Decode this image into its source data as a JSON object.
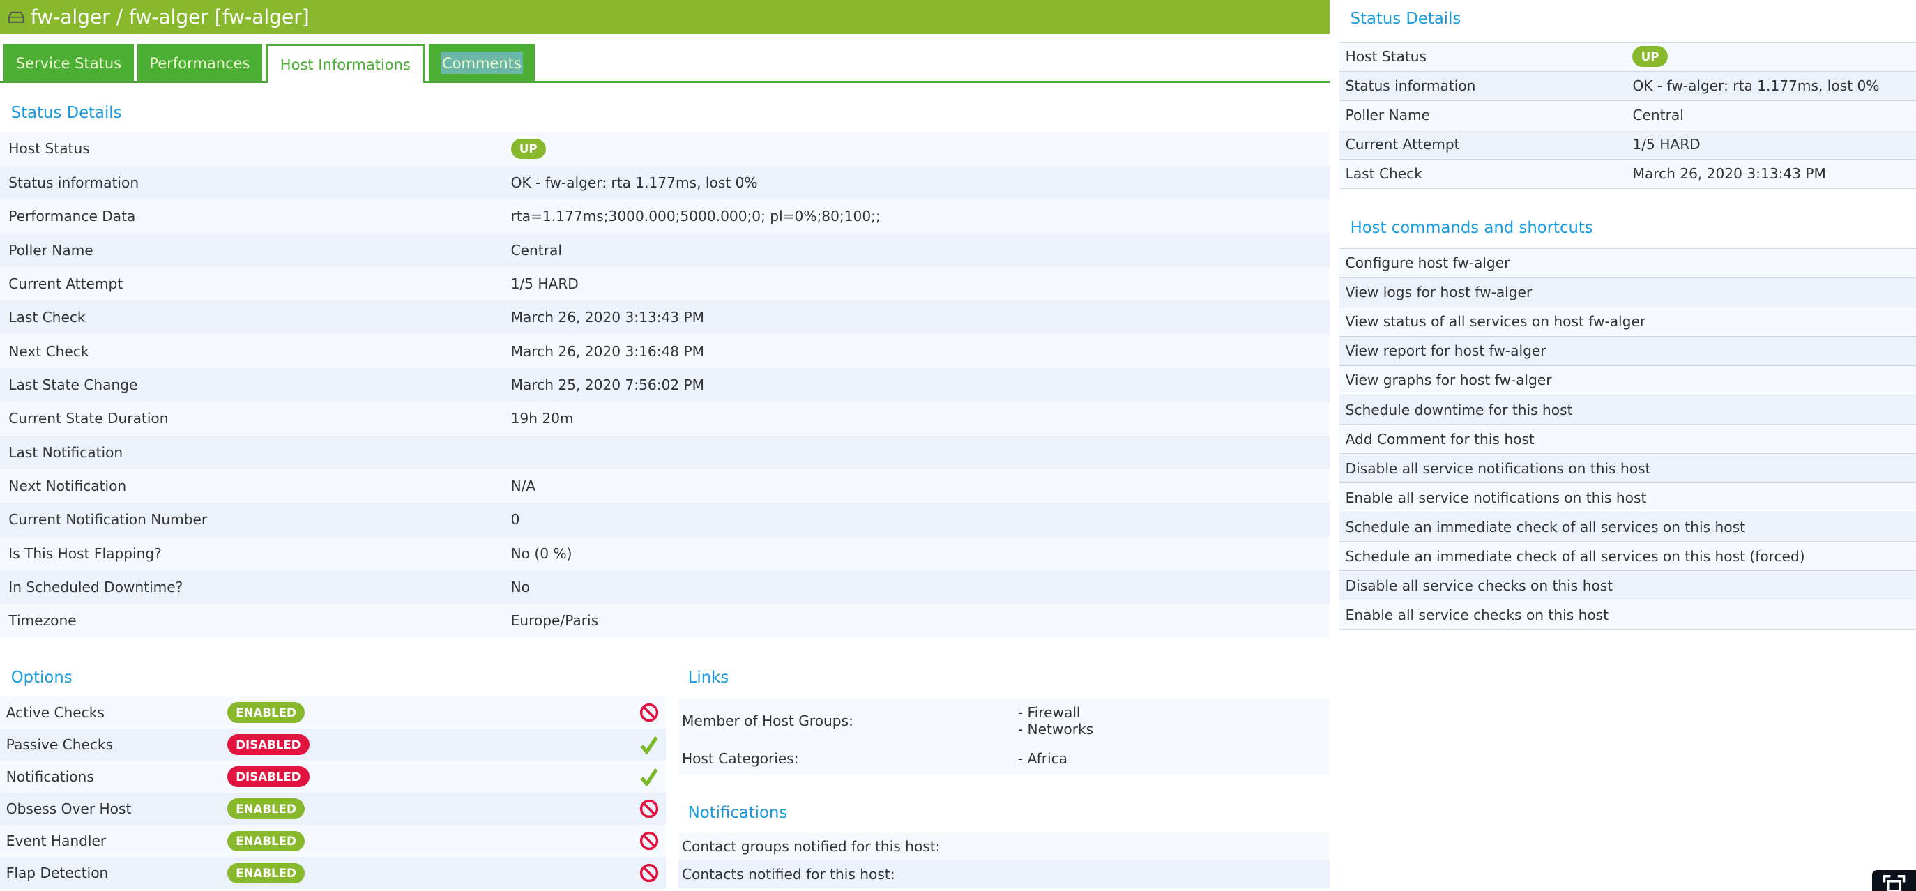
{
  "header": {
    "title": "fw-alger / fw-alger [fw-alger]",
    "icon": "host-icon"
  },
  "tabs": [
    {
      "label": "Service Status"
    },
    {
      "label": "Performances"
    },
    {
      "label": "Host Informations",
      "active": true
    },
    {
      "label": "Comments"
    }
  ],
  "status_details": {
    "title": "Status Details",
    "rows": [
      {
        "label": "Host Status",
        "value": "UP",
        "badge": true
      },
      {
        "label": "Status information",
        "value": "OK - fw-alger: rta 1.177ms, lost 0%"
      },
      {
        "label": "Performance Data",
        "value": "rta=1.177ms;3000.000;5000.000;0; pl=0%;80;100;;"
      },
      {
        "label": "Poller Name",
        "value": " Central"
      },
      {
        "label": "Current Attempt",
        "value": "1/5 HARD"
      },
      {
        "label": "Last Check",
        "value": "March 26, 2020 3:13:43 PM"
      },
      {
        "label": "Next Check",
        "value": "March 26, 2020 3:16:48 PM"
      },
      {
        "label": "Last State Change",
        "value": "March 25, 2020 7:56:02 PM"
      },
      {
        "label": "Current State Duration",
        "value": "19h 20m"
      },
      {
        "label": "Last Notification",
        "value": ""
      },
      {
        "label": "Next Notification",
        "value": "N/A"
      },
      {
        "label": "Current Notification Number",
        "value": "0"
      },
      {
        "label": "Is This Host Flapping?",
        "value": "No (0 %)"
      },
      {
        "label": "In Scheduled Downtime?",
        "value": "No"
      },
      {
        "label": "Timezone",
        "value": "Europe/Paris"
      }
    ]
  },
  "options": {
    "title": "Options",
    "rows": [
      {
        "label": "Active Checks",
        "status": "ENABLED",
        "action_icon": "disable-icon"
      },
      {
        "label": "Passive Checks",
        "status": "DISABLED",
        "action_icon": "check-icon"
      },
      {
        "label": "Notifications",
        "status": "DISABLED",
        "action_icon": "check-icon"
      },
      {
        "label": "Obsess Over Host",
        "status": "ENABLED",
        "action_icon": "disable-icon"
      },
      {
        "label": "Event Handler",
        "status": "ENABLED",
        "action_icon": "disable-icon"
      },
      {
        "label": "Flap Detection",
        "status": "ENABLED",
        "action_icon": "disable-icon"
      }
    ]
  },
  "links": {
    "title": "Links",
    "host_groups_label": "Member of Host Groups:",
    "host_groups": [
      "- Firewall",
      "- Networks"
    ],
    "categories_label": "Host Categories:",
    "categories": [
      "- Africa"
    ]
  },
  "notifications": {
    "title": "Notifications",
    "rows": [
      {
        "label": "Contact groups notified for this host:"
      },
      {
        "label": "Contacts notified for this host:"
      }
    ]
  },
  "right_status": {
    "title": "Status Details",
    "rows": [
      {
        "label": "Host Status",
        "value": "UP",
        "badge": true
      },
      {
        "label": "Status information",
        "value": "OK - fw-alger: rta 1.177ms, lost 0%"
      },
      {
        "label": "Poller Name",
        "value": "Central"
      },
      {
        "label": "Current Attempt",
        "value": "1/5 HARD"
      },
      {
        "label": "Last Check",
        "value": "March 26, 2020 3:13:43 PM"
      }
    ]
  },
  "commands": {
    "title": "Host commands and shortcuts",
    "items": [
      "Configure host fw-alger",
      "View logs for host fw-alger",
      "View status of all services on host fw-alger",
      "View report for host fw-alger",
      "View graphs for host fw-alger",
      "Schedule downtime for this host",
      "Add Comment for this host",
      "Disable all service notifications on this host",
      "Enable all service notifications on this host",
      "Schedule an immediate check of all services on this host",
      "Schedule an immediate check of all services on this host (forced)",
      "Disable all service checks on this host",
      "Enable all service checks on this host"
    ]
  },
  "colors": {
    "header": "#88b82b",
    "tab": "#4aaf33",
    "title": "#1a9be0",
    "enabled": "#88b82b",
    "disabled": "#e0143f"
  }
}
